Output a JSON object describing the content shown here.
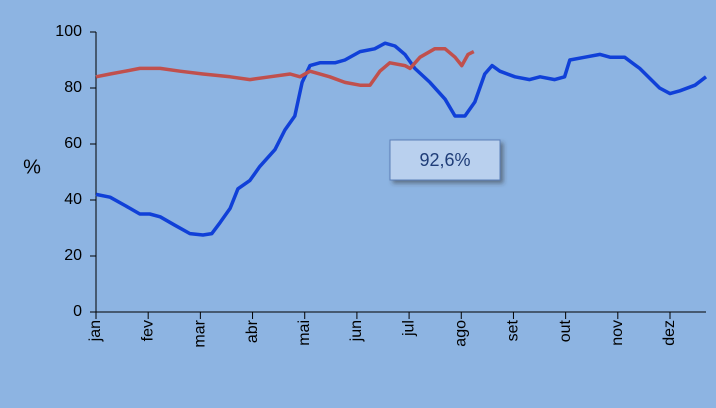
{
  "chart_data": {
    "type": "line",
    "ylabel": "%",
    "annotation": "92,6%",
    "xlim": [
      0,
      11.69
    ],
    "ylim": [
      0,
      100
    ],
    "yticks": [
      0,
      20,
      40,
      60,
      80,
      100
    ],
    "xticks": [
      {
        "value": 0,
        "label": "jan"
      },
      {
        "value": 1,
        "label": "fev"
      },
      {
        "value": 2,
        "label": "mar"
      },
      {
        "value": 3,
        "label": "abr"
      },
      {
        "value": 4,
        "label": "mai"
      },
      {
        "value": 5,
        "label": "jun"
      },
      {
        "value": 6,
        "label": "jul"
      },
      {
        "value": 7,
        "label": "ago"
      },
      {
        "value": 8,
        "label": "set"
      },
      {
        "value": 9,
        "label": "out"
      },
      {
        "value": 10,
        "label": "nov"
      },
      {
        "value": 11,
        "label": "dez"
      }
    ],
    "series": [
      {
        "color": "#1040d8",
        "x": [
          0,
          0.27,
          0.56,
          0.84,
          1.03,
          1.23,
          1.51,
          1.8,
          2.05,
          2.22,
          2.38,
          2.57,
          2.72,
          2.95,
          3.14,
          3.43,
          3.62,
          3.81,
          3.95,
          4.1,
          4.29,
          4.58,
          4.77,
          5.06,
          5.34,
          5.54,
          5.73,
          5.92,
          6.11,
          6.4,
          6.69,
          6.88,
          7.07,
          7.26,
          7.45,
          7.59,
          7.74,
          8.03,
          8.31,
          8.51,
          8.79,
          8.98,
          9.08,
          9.37,
          9.66,
          9.85,
          10.13,
          10.42,
          10.8,
          11.0,
          11.19,
          11.48,
          11.69
        ],
        "values": [
          42,
          41,
          38,
          35,
          35,
          34,
          31,
          28,
          27.5,
          28,
          32,
          37,
          44,
          47,
          52,
          58,
          65,
          70,
          82,
          88,
          89,
          89,
          90,
          93,
          94,
          96,
          95,
          92,
          87,
          82,
          76,
          70,
          70,
          75,
          85,
          88,
          86,
          84,
          83,
          84,
          83,
          84,
          90,
          91,
          92,
          91,
          91,
          87,
          80,
          78,
          79,
          81,
          84
        ]
      },
      {
        "color": "#c0504d",
        "x": [
          0,
          0.27,
          0.56,
          0.84,
          1.23,
          1.61,
          2.05,
          2.57,
          2.95,
          3.33,
          3.72,
          3.91,
          4.1,
          4.48,
          4.77,
          5.06,
          5.25,
          5.44,
          5.63,
          5.92,
          6.02,
          6.21,
          6.49,
          6.69,
          6.88,
          7.01,
          7.13,
          7.24
        ],
        "values": [
          84,
          85,
          86,
          87,
          87,
          86,
          85,
          84,
          83,
          84,
          85,
          84,
          86,
          84,
          82,
          81,
          81,
          86,
          89,
          88,
          87,
          91,
          94,
          94,
          91,
          88,
          92,
          93
        ]
      }
    ]
  }
}
